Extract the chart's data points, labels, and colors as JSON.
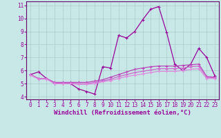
{
  "xlabel": "Windchill (Refroidissement éolien,°C)",
  "ylabel": "",
  "xlim": [
    -0.5,
    23.5
  ],
  "ylim": [
    3.8,
    11.3
  ],
  "yticks": [
    4,
    5,
    6,
    7,
    8,
    9,
    10,
    11
  ],
  "xticks": [
    0,
    1,
    2,
    3,
    4,
    5,
    6,
    7,
    8,
    9,
    10,
    11,
    12,
    13,
    14,
    15,
    16,
    17,
    18,
    19,
    20,
    21,
    22,
    23
  ],
  "background_color": "#c8e8e8",
  "grid_color": "#aacccc",
  "line_color": "#990099",
  "spine_color": "#660066",
  "lines": [
    {
      "x": [
        0,
        1,
        2,
        3,
        4,
        5,
        6,
        7,
        8,
        9,
        10,
        11,
        12,
        13,
        14,
        15,
        16,
        17,
        18,
        19,
        20,
        21,
        22,
        23
      ],
      "y": [
        5.7,
        5.9,
        5.4,
        5.0,
        5.0,
        5.0,
        4.6,
        4.4,
        4.2,
        6.3,
        6.2,
        8.7,
        8.5,
        9.0,
        9.9,
        10.7,
        10.9,
        8.9,
        6.5,
        6.0,
        6.5,
        7.7,
        7.0,
        5.6
      ],
      "color": "#990099"
    },
    {
      "x": [
        0,
        1,
        2,
        3,
        4,
        5,
        6,
        7,
        8,
        9,
        10,
        11,
        12,
        13,
        14,
        15,
        16,
        17,
        18,
        19,
        20,
        21,
        22,
        23
      ],
      "y": [
        5.7,
        5.4,
        5.4,
        5.1,
        5.1,
        5.1,
        5.1,
        5.1,
        5.2,
        5.3,
        5.5,
        5.7,
        5.9,
        6.1,
        6.2,
        6.3,
        6.35,
        6.35,
        6.35,
        6.4,
        6.45,
        6.5,
        5.55,
        5.5
      ],
      "color": "#bb44bb"
    },
    {
      "x": [
        0,
        1,
        2,
        3,
        4,
        5,
        6,
        7,
        8,
        9,
        10,
        11,
        12,
        13,
        14,
        15,
        16,
        17,
        18,
        19,
        20,
        21,
        22,
        23
      ],
      "y": [
        5.7,
        5.4,
        5.4,
        5.05,
        5.05,
        5.05,
        5.0,
        5.0,
        5.1,
        5.2,
        5.35,
        5.55,
        5.7,
        5.85,
        5.95,
        6.05,
        6.15,
        6.15,
        6.15,
        6.2,
        6.3,
        6.35,
        5.5,
        5.45
      ],
      "color": "#cc66cc"
    },
    {
      "x": [
        0,
        1,
        2,
        3,
        4,
        5,
        6,
        7,
        8,
        9,
        10,
        11,
        12,
        13,
        14,
        15,
        16,
        17,
        18,
        19,
        20,
        21,
        22,
        23
      ],
      "y": [
        5.65,
        5.35,
        5.35,
        5.0,
        5.0,
        5.0,
        4.95,
        4.95,
        5.0,
        5.15,
        5.25,
        5.4,
        5.55,
        5.65,
        5.75,
        5.85,
        5.95,
        5.95,
        5.95,
        6.0,
        6.1,
        6.15,
        5.4,
        5.4
      ],
      "color": "#dd88dd"
    }
  ],
  "marker": "+",
  "markersize": 3,
  "linewidth": 0.9,
  "tick_fontsize": 5.5,
  "label_fontsize": 6.5
}
